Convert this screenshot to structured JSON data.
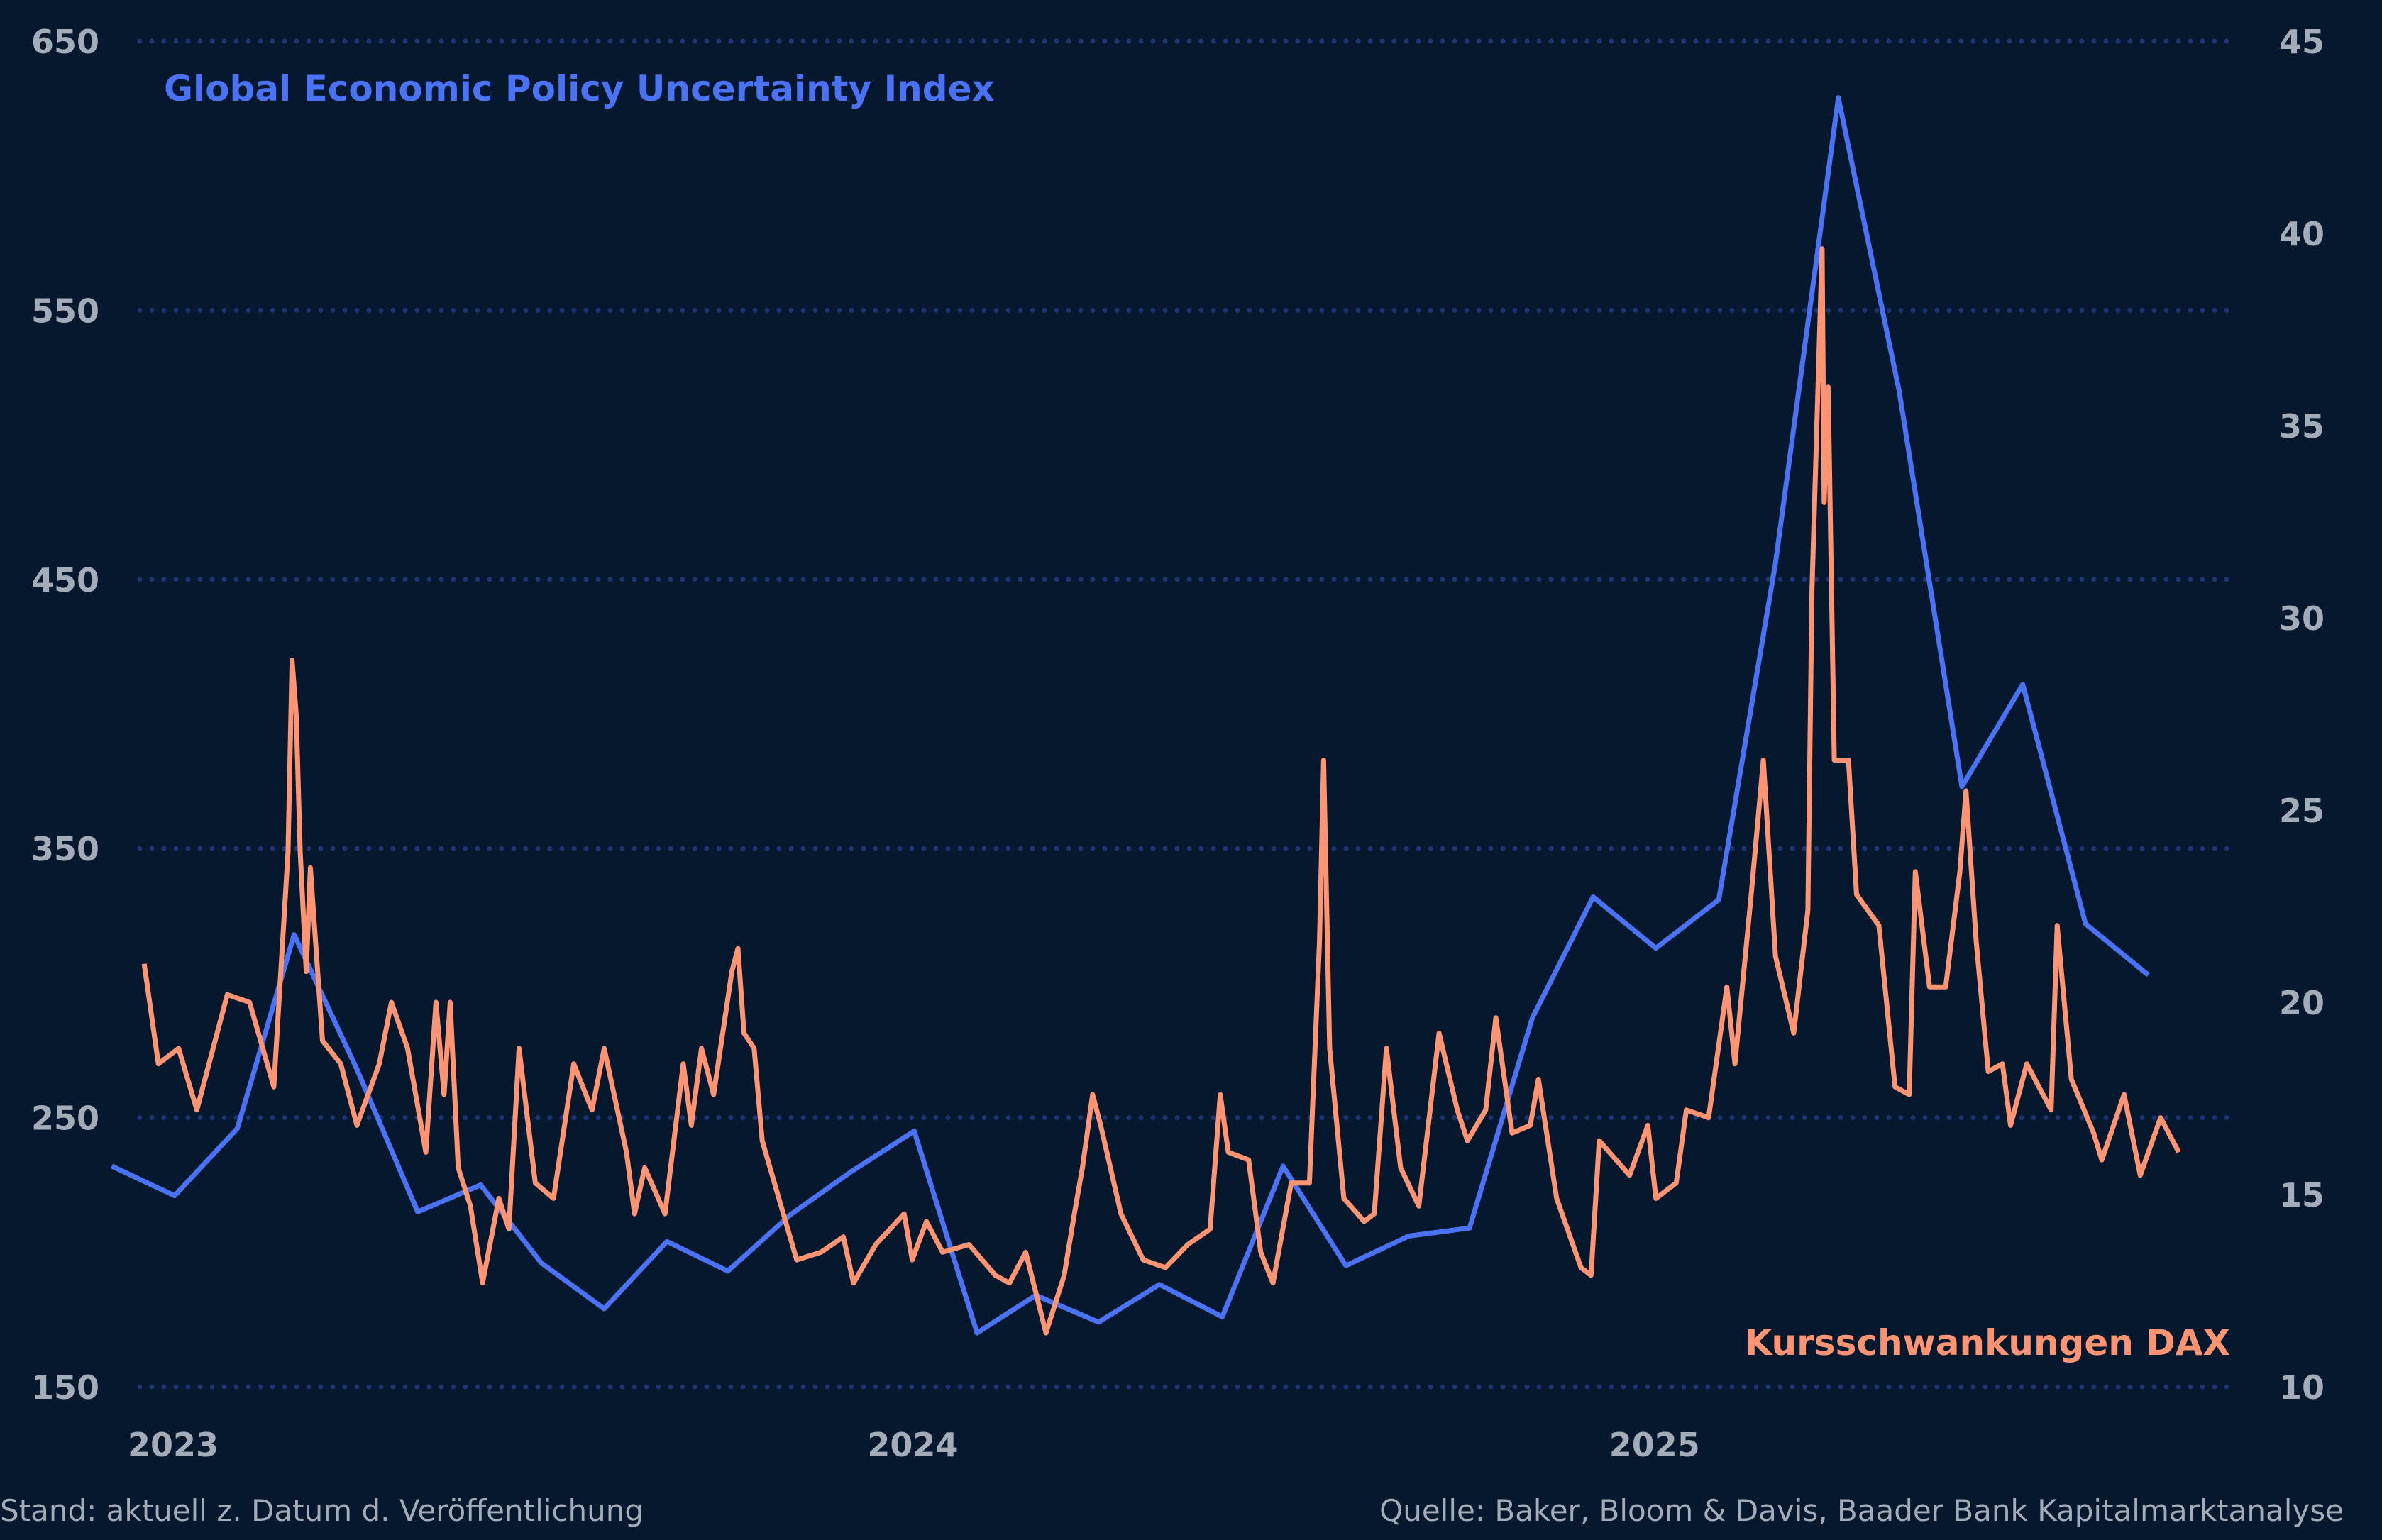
{
  "chart_data": {
    "type": "line",
    "title": "",
    "footer_left": "Stand: aktuell z. Datum d. Veröffentlichung",
    "footer_right": "Quelle: Baker, Bloom & Davis, Baader Bank Kapitalmarktanalyse",
    "x_ticks": [
      "2023",
      "2024",
      "2025"
    ],
    "y_left": {
      "range": [
        150,
        650
      ],
      "ticks": [
        "150",
        "250",
        "350",
        "450",
        "550",
        "650"
      ]
    },
    "y_right": {
      "range": [
        10,
        45
      ],
      "ticks": [
        "10",
        "15",
        "20",
        "25",
        "30",
        "35",
        "40",
        "45"
      ]
    },
    "grid": "horizontal dotted",
    "colors": {
      "background": "#05182e",
      "grid": "#1d3470",
      "epu": "#4a72f5",
      "dax": "#ff9473",
      "ticks": "#a3acb9"
    },
    "series": [
      {
        "name": "Global Economic Policy Uncertainty Index",
        "axis": "left",
        "color": "#4a72f5",
        "points": [
          [
            "2022-12-01",
            232
          ],
          [
            "2023-01-01",
            221
          ],
          [
            "2023-02-01",
            246
          ],
          [
            "2023-03-01",
            318
          ],
          [
            "2023-04-01",
            268
          ],
          [
            "2023-05-01",
            215
          ],
          [
            "2023-06-01",
            225
          ],
          [
            "2023-07-01",
            196
          ],
          [
            "2023-08-01",
            179
          ],
          [
            "2023-09-01",
            204
          ],
          [
            "2023-10-01",
            193
          ],
          [
            "2023-11-01",
            214
          ],
          [
            "2023-12-01",
            230
          ],
          [
            "2024-01-01",
            245
          ],
          [
            "2024-02-01",
            170
          ],
          [
            "2024-03-01",
            184
          ],
          [
            "2024-04-01",
            174
          ],
          [
            "2024-05-01",
            188
          ],
          [
            "2024-06-01",
            176
          ],
          [
            "2024-07-01",
            232
          ],
          [
            "2024-08-01",
            195
          ],
          [
            "2024-09-01",
            206
          ],
          [
            "2024-10-01",
            209
          ],
          [
            "2024-11-01",
            287
          ],
          [
            "2024-12-01",
            332
          ],
          [
            "2025-01-01",
            313
          ],
          [
            "2025-02-01",
            331
          ],
          [
            "2025-03-01",
            456
          ],
          [
            "2025-04-01",
            629
          ],
          [
            "2025-05-01",
            520
          ],
          [
            "2025-06-01",
            373
          ],
          [
            "2025-07-01",
            411
          ],
          [
            "2025-08-01",
            322
          ],
          [
            "2025-09-01",
            303
          ]
        ]
      },
      {
        "name": "Kursschwankungen DAX",
        "axis": "right",
        "color": "#ff9473",
        "points": [
          [
            "2022-12-17",
            21.0
          ],
          [
            "2022-12-24",
            18.4
          ],
          [
            "2023-01-03",
            18.8
          ],
          [
            "2023-01-12",
            17.2
          ],
          [
            "2023-01-27",
            20.2
          ],
          [
            "2023-02-07",
            20.0
          ],
          [
            "2023-02-19",
            17.8
          ],
          [
            "2023-02-26",
            23.9
          ],
          [
            "2023-02-28",
            28.9
          ],
          [
            "2023-03-02",
            27.5
          ],
          [
            "2023-03-04",
            23.9
          ],
          [
            "2023-03-07",
            20.8
          ],
          [
            "2023-03-09",
            23.5
          ],
          [
            "2023-03-15",
            19.0
          ],
          [
            "2023-03-24",
            18.4
          ],
          [
            "2023-04-01",
            16.8
          ],
          [
            "2023-04-12",
            18.4
          ],
          [
            "2023-04-18",
            20.0
          ],
          [
            "2023-04-26",
            18.8
          ],
          [
            "2023-05-05",
            16.1
          ],
          [
            "2023-05-10",
            20.0
          ],
          [
            "2023-05-14",
            17.6
          ],
          [
            "2023-05-17",
            20.0
          ],
          [
            "2023-05-21",
            15.7
          ],
          [
            "2023-05-27",
            14.7
          ],
          [
            "2023-06-02",
            12.7
          ],
          [
            "2023-06-10",
            14.9
          ],
          [
            "2023-06-15",
            14.1
          ],
          [
            "2023-06-20",
            18.8
          ],
          [
            "2023-06-28",
            15.3
          ],
          [
            "2023-07-07",
            14.9
          ],
          [
            "2023-07-17",
            18.4
          ],
          [
            "2023-07-26",
            17.2
          ],
          [
            "2023-08-01",
            18.8
          ],
          [
            "2023-08-12",
            16.1
          ],
          [
            "2023-08-16",
            14.5
          ],
          [
            "2023-08-21",
            15.7
          ],
          [
            "2023-08-31",
            14.5
          ],
          [
            "2023-09-09",
            18.4
          ],
          [
            "2023-09-13",
            16.8
          ],
          [
            "2023-09-18",
            18.8
          ],
          [
            "2023-09-24",
            17.6
          ],
          [
            "2023-10-03",
            20.8
          ],
          [
            "2023-10-06",
            21.4
          ],
          [
            "2023-10-09",
            19.2
          ],
          [
            "2023-10-14",
            18.8
          ],
          [
            "2023-10-18",
            16.4
          ],
          [
            "2023-10-24",
            15.3
          ],
          [
            "2023-11-04",
            13.3
          ],
          [
            "2023-11-16",
            13.5
          ],
          [
            "2023-11-27",
            13.9
          ],
          [
            "2023-12-02",
            12.7
          ],
          [
            "2023-12-13",
            13.7
          ],
          [
            "2023-12-27",
            14.5
          ],
          [
            "2023-12-31",
            13.3
          ],
          [
            "2024-01-07",
            14.3
          ],
          [
            "2024-01-15",
            13.5
          ],
          [
            "2024-01-28",
            13.7
          ],
          [
            "2024-02-10",
            12.9
          ],
          [
            "2024-02-17",
            12.7
          ],
          [
            "2024-02-25",
            13.5
          ],
          [
            "2024-03-06",
            11.4
          ],
          [
            "2024-03-15",
            12.9
          ],
          [
            "2024-03-20",
            14.5
          ],
          [
            "2024-03-24",
            15.7
          ],
          [
            "2024-03-29",
            17.6
          ],
          [
            "2024-04-02",
            16.8
          ],
          [
            "2024-04-12",
            14.5
          ],
          [
            "2024-04-23",
            13.3
          ],
          [
            "2024-05-04",
            13.1
          ],
          [
            "2024-05-15",
            13.7
          ],
          [
            "2024-05-26",
            14.1
          ],
          [
            "2024-05-31",
            17.6
          ],
          [
            "2024-06-04",
            16.1
          ],
          [
            "2024-06-14",
            15.9
          ],
          [
            "2024-06-20",
            13.5
          ],
          [
            "2024-06-26",
            12.7
          ],
          [
            "2024-07-05",
            15.3
          ],
          [
            "2024-07-14",
            15.3
          ],
          [
            "2024-07-19",
            21.6
          ],
          [
            "2024-07-21",
            26.3
          ],
          [
            "2024-07-24",
            18.8
          ],
          [
            "2024-07-31",
            14.9
          ],
          [
            "2024-08-10",
            14.3
          ],
          [
            "2024-08-15",
            14.5
          ],
          [
            "2024-08-21",
            18.8
          ],
          [
            "2024-08-28",
            15.7
          ],
          [
            "2024-09-06",
            14.7
          ],
          [
            "2024-09-16",
            19.2
          ],
          [
            "2024-09-25",
            17.2
          ],
          [
            "2024-09-30",
            16.4
          ],
          [
            "2024-10-09",
            17.2
          ],
          [
            "2024-10-14",
            19.6
          ],
          [
            "2024-10-22",
            16.6
          ],
          [
            "2024-10-31",
            16.8
          ],
          [
            "2024-11-04",
            18.0
          ],
          [
            "2024-11-13",
            14.9
          ],
          [
            "2024-11-25",
            13.1
          ],
          [
            "2024-11-30",
            12.9
          ],
          [
            "2024-12-04",
            16.4
          ],
          [
            "2024-12-19",
            15.5
          ],
          [
            "2024-12-28",
            16.8
          ],
          [
            "2025-01-01",
            14.9
          ],
          [
            "2025-01-11",
            15.3
          ],
          [
            "2025-01-16",
            17.2
          ],
          [
            "2025-01-27",
            17.0
          ],
          [
            "2025-02-05",
            20.4
          ],
          [
            "2025-02-09",
            18.4
          ],
          [
            "2025-02-17",
            22.8
          ],
          [
            "2025-02-23",
            26.3
          ],
          [
            "2025-03-01",
            21.2
          ],
          [
            "2025-03-10",
            19.2
          ],
          [
            "2025-03-17",
            22.4
          ],
          [
            "2025-03-19",
            30.7
          ],
          [
            "2025-03-24",
            39.6
          ],
          [
            "2025-03-25",
            33.0
          ],
          [
            "2025-03-27",
            36.0
          ],
          [
            "2025-03-30",
            26.3
          ],
          [
            "2025-04-06",
            26.3
          ],
          [
            "2025-04-10",
            22.8
          ],
          [
            "2025-04-21",
            22.0
          ],
          [
            "2025-04-29",
            17.8
          ],
          [
            "2025-05-06",
            17.6
          ],
          [
            "2025-05-09",
            23.4
          ],
          [
            "2025-05-16",
            20.4
          ],
          [
            "2025-05-24",
            20.4
          ],
          [
            "2025-05-31",
            23.4
          ],
          [
            "2025-06-03",
            25.5
          ],
          [
            "2025-06-08",
            21.6
          ],
          [
            "2025-06-14",
            18.2
          ],
          [
            "2025-06-21",
            18.4
          ],
          [
            "2025-06-25",
            16.8
          ],
          [
            "2025-07-03",
            18.4
          ],
          [
            "2025-07-15",
            17.2
          ],
          [
            "2025-07-18",
            22.0
          ],
          [
            "2025-07-25",
            18.0
          ],
          [
            "2025-08-05",
            16.6
          ],
          [
            "2025-08-09",
            15.9
          ],
          [
            "2025-08-20",
            17.6
          ],
          [
            "2025-08-28",
            15.5
          ],
          [
            "2025-09-07",
            17.0
          ],
          [
            "2025-09-16",
            16.1
          ]
        ]
      }
    ]
  }
}
